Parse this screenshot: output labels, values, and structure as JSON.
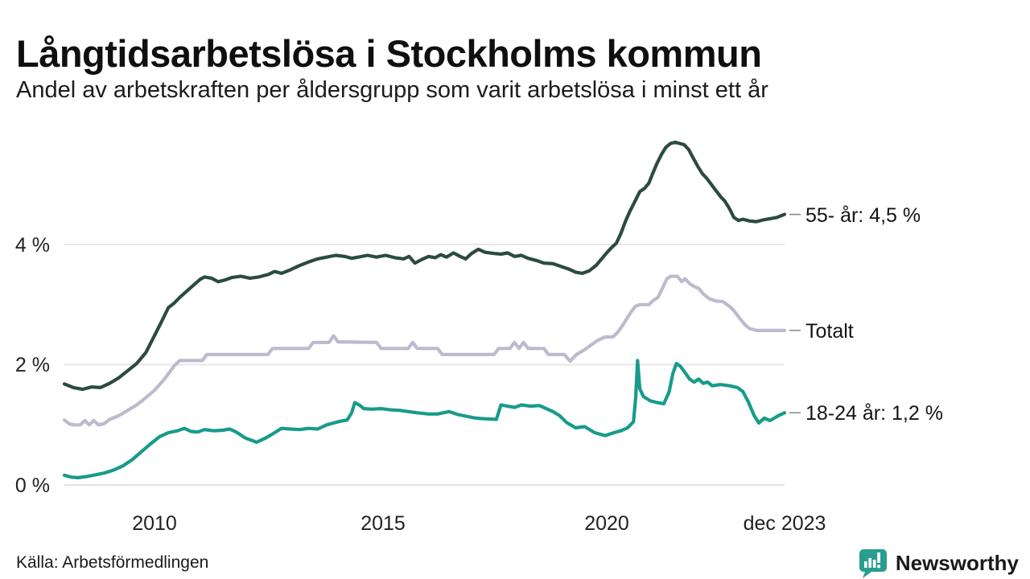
{
  "title": "Långtidsarbetslösa i Stockholms kommun",
  "subtitle": "Andel av arbetskraften per åldersgrupp som varit arbetslösa i minst ett år",
  "source": "Källa: Arbetsförmedlingen",
  "branding": {
    "name": "Newsworthy",
    "color": "#2a9d8f",
    "icon": "bar-chart-speech-bubble-icon"
  },
  "chart_data": {
    "type": "line",
    "title": "Långtidsarbetslösa i Stockholms kommun",
    "subtitle": "Andel av arbetskraften per åldersgrupp som varit arbetslösa i minst ett år",
    "unit": "% av arbetskraften",
    "grid": true,
    "legend_position": "right-edge-labels",
    "x_axis": {
      "range": [
        2008,
        2023.92
      ],
      "ticks": [
        {
          "label": "2010",
          "year": 2010
        },
        {
          "label": "2015",
          "year": 2015
        },
        {
          "label": "2020",
          "year": 2020
        },
        {
          "label": "dec 2023",
          "year": 2023.92
        }
      ]
    },
    "y_axis": {
      "range": [
        0,
        6.1
      ],
      "ticks": [
        {
          "label": "0 %",
          "value": 0
        },
        {
          "label": "2 %",
          "value": 2
        },
        {
          "label": "4 %",
          "value": 4
        }
      ]
    },
    "series": [
      {
        "name": "55- år",
        "end_label": "55- år: 4,5 %",
        "end_value": 4.5,
        "color": "#2b4b41",
        "points": [
          [
            2008,
            1.68
          ],
          [
            2008.2,
            1.62
          ],
          [
            2008.4,
            1.59
          ],
          [
            2008.6,
            1.63
          ],
          [
            2008.8,
            1.62
          ],
          [
            2009,
            1.69
          ],
          [
            2009.2,
            1.78
          ],
          [
            2009.4,
            1.9
          ],
          [
            2009.6,
            2.02
          ],
          [
            2009.8,
            2.2
          ],
          [
            2009.95,
            2.42
          ],
          [
            2010.15,
            2.72
          ],
          [
            2010.3,
            2.95
          ],
          [
            2010.42,
            3.02
          ],
          [
            2010.55,
            3.12
          ],
          [
            2010.7,
            3.22
          ],
          [
            2010.85,
            3.32
          ],
          [
            2011,
            3.42
          ],
          [
            2011.1,
            3.46
          ],
          [
            2011.25,
            3.44
          ],
          [
            2011.4,
            3.38
          ],
          [
            2011.55,
            3.41
          ],
          [
            2011.7,
            3.45
          ],
          [
            2011.9,
            3.47
          ],
          [
            2012.1,
            3.44
          ],
          [
            2012.3,
            3.46
          ],
          [
            2012.5,
            3.5
          ],
          [
            2012.65,
            3.55
          ],
          [
            2012.8,
            3.52
          ],
          [
            2013,
            3.58
          ],
          [
            2013.2,
            3.65
          ],
          [
            2013.4,
            3.71
          ],
          [
            2013.6,
            3.76
          ],
          [
            2013.8,
            3.79
          ],
          [
            2014,
            3.82
          ],
          [
            2014.2,
            3.8
          ],
          [
            2014.35,
            3.77
          ],
          [
            2014.5,
            3.79
          ],
          [
            2014.7,
            3.82
          ],
          [
            2014.9,
            3.79
          ],
          [
            2015.1,
            3.82
          ],
          [
            2015.3,
            3.78
          ],
          [
            2015.5,
            3.76
          ],
          [
            2015.62,
            3.8
          ],
          [
            2015.75,
            3.69
          ],
          [
            2015.9,
            3.75
          ],
          [
            2016.05,
            3.8
          ],
          [
            2016.2,
            3.78
          ],
          [
            2016.32,
            3.83
          ],
          [
            2016.45,
            3.79
          ],
          [
            2016.6,
            3.86
          ],
          [
            2016.75,
            3.8
          ],
          [
            2016.87,
            3.76
          ],
          [
            2017,
            3.85
          ],
          [
            2017.15,
            3.92
          ],
          [
            2017.3,
            3.87
          ],
          [
            2017.5,
            3.85
          ],
          [
            2017.65,
            3.84
          ],
          [
            2017.8,
            3.86
          ],
          [
            2017.95,
            3.8
          ],
          [
            2018.1,
            3.82
          ],
          [
            2018.25,
            3.77
          ],
          [
            2018.45,
            3.73
          ],
          [
            2018.6,
            3.69
          ],
          [
            2018.8,
            3.68
          ],
          [
            2019,
            3.63
          ],
          [
            2019.15,
            3.59
          ],
          [
            2019.3,
            3.54
          ],
          [
            2019.45,
            3.52
          ],
          [
            2019.6,
            3.56
          ],
          [
            2019.75,
            3.65
          ],
          [
            2019.9,
            3.78
          ],
          [
            2020,
            3.87
          ],
          [
            2020.1,
            3.95
          ],
          [
            2020.2,
            4.02
          ],
          [
            2020.3,
            4.18
          ],
          [
            2020.4,
            4.38
          ],
          [
            2020.5,
            4.55
          ],
          [
            2020.6,
            4.7
          ],
          [
            2020.72,
            4.88
          ],
          [
            2020.82,
            4.93
          ],
          [
            2020.92,
            5.02
          ],
          [
            2021,
            5.17
          ],
          [
            2021.1,
            5.35
          ],
          [
            2021.2,
            5.5
          ],
          [
            2021.3,
            5.62
          ],
          [
            2021.4,
            5.68
          ],
          [
            2021.5,
            5.7
          ],
          [
            2021.6,
            5.68
          ],
          [
            2021.7,
            5.66
          ],
          [
            2021.8,
            5.58
          ],
          [
            2021.9,
            5.44
          ],
          [
            2022,
            5.3
          ],
          [
            2022.1,
            5.18
          ],
          [
            2022.2,
            5.1
          ],
          [
            2022.3,
            5
          ],
          [
            2022.4,
            4.9
          ],
          [
            2022.5,
            4.8
          ],
          [
            2022.6,
            4.72
          ],
          [
            2022.7,
            4.6
          ],
          [
            2022.8,
            4.45
          ],
          [
            2022.9,
            4.4
          ],
          [
            2023,
            4.42
          ],
          [
            2023.15,
            4.39
          ],
          [
            2023.3,
            4.38
          ],
          [
            2023.45,
            4.41
          ],
          [
            2023.6,
            4.43
          ],
          [
            2023.75,
            4.45
          ],
          [
            2023.92,
            4.5
          ]
        ]
      },
      {
        "name": "Totalt",
        "end_label": "Totalt",
        "end_value": 2.57,
        "color": "#bebacd",
        "points": [
          [
            2008,
            1.08
          ],
          [
            2008.1,
            1.02
          ],
          [
            2008.2,
            1
          ],
          [
            2008.35,
            1
          ],
          [
            2008.45,
            1.07
          ],
          [
            2008.55,
            1
          ],
          [
            2008.65,
            1.07
          ],
          [
            2008.75,
            1
          ],
          [
            2008.88,
            1.02
          ],
          [
            2009,
            1.09
          ],
          [
            2009.2,
            1.15
          ],
          [
            2009.4,
            1.24
          ],
          [
            2009.6,
            1.33
          ],
          [
            2009.8,
            1.45
          ],
          [
            2010,
            1.58
          ],
          [
            2010.2,
            1.75
          ],
          [
            2010.35,
            1.9
          ],
          [
            2010.45,
            2
          ],
          [
            2010.55,
            2.07
          ],
          [
            2011.05,
            2.07
          ],
          [
            2011.15,
            2.17
          ],
          [
            2012.5,
            2.17
          ],
          [
            2012.6,
            2.27
          ],
          [
            2013.4,
            2.27
          ],
          [
            2013.5,
            2.37
          ],
          [
            2013.85,
            2.37
          ],
          [
            2013.95,
            2.48
          ],
          [
            2014.05,
            2.38
          ],
          [
            2014.9,
            2.37
          ],
          [
            2015,
            2.27
          ],
          [
            2015.6,
            2.27
          ],
          [
            2015.7,
            2.37
          ],
          [
            2015.8,
            2.27
          ],
          [
            2016.25,
            2.27
          ],
          [
            2016.35,
            2.17
          ],
          [
            2017.5,
            2.17
          ],
          [
            2017.6,
            2.27
          ],
          [
            2017.85,
            2.27
          ],
          [
            2017.95,
            2.37
          ],
          [
            2018.05,
            2.27
          ],
          [
            2018.15,
            2.37
          ],
          [
            2018.25,
            2.27
          ],
          [
            2018.6,
            2.27
          ],
          [
            2018.7,
            2.17
          ],
          [
            2019.05,
            2.17
          ],
          [
            2019.18,
            2.06
          ],
          [
            2019.32,
            2.17
          ],
          [
            2019.5,
            2.25
          ],
          [
            2019.65,
            2.33
          ],
          [
            2019.8,
            2.41
          ],
          [
            2019.95,
            2.46
          ],
          [
            2020.12,
            2.46
          ],
          [
            2020.22,
            2.53
          ],
          [
            2020.32,
            2.63
          ],
          [
            2020.42,
            2.75
          ],
          [
            2020.52,
            2.87
          ],
          [
            2020.62,
            2.97
          ],
          [
            2020.72,
            3
          ],
          [
            2020.92,
            3
          ],
          [
            2021.02,
            3.07
          ],
          [
            2021.12,
            3.12
          ],
          [
            2021.22,
            3.27
          ],
          [
            2021.32,
            3.43
          ],
          [
            2021.4,
            3.47
          ],
          [
            2021.55,
            3.47
          ],
          [
            2021.65,
            3.38
          ],
          [
            2021.72,
            3.43
          ],
          [
            2021.82,
            3.35
          ],
          [
            2021.92,
            3.3
          ],
          [
            2022.02,
            3.27
          ],
          [
            2022.12,
            3.18
          ],
          [
            2022.25,
            3.1
          ],
          [
            2022.4,
            3.06
          ],
          [
            2022.55,
            3.05
          ],
          [
            2022.65,
            3
          ],
          [
            2022.75,
            2.94
          ],
          [
            2022.85,
            2.85
          ],
          [
            2022.95,
            2.75
          ],
          [
            2023.05,
            2.66
          ],
          [
            2023.15,
            2.6
          ],
          [
            2023.3,
            2.57
          ],
          [
            2023.92,
            2.57
          ]
        ]
      },
      {
        "name": "18-24 år",
        "end_label": "18-24 år: 1,2 %",
        "end_value": 1.2,
        "color": "#189b8b",
        "points": [
          [
            2008,
            0.16
          ],
          [
            2008.15,
            0.13
          ],
          [
            2008.3,
            0.12
          ],
          [
            2008.5,
            0.14
          ],
          [
            2008.7,
            0.17
          ],
          [
            2008.9,
            0.2
          ],
          [
            2009.1,
            0.25
          ],
          [
            2009.3,
            0.32
          ],
          [
            2009.5,
            0.42
          ],
          [
            2009.7,
            0.55
          ],
          [
            2009.9,
            0.68
          ],
          [
            2010.1,
            0.8
          ],
          [
            2010.3,
            0.87
          ],
          [
            2010.5,
            0.9
          ],
          [
            2010.65,
            0.94
          ],
          [
            2010.8,
            0.89
          ],
          [
            2010.95,
            0.88
          ],
          [
            2011.1,
            0.92
          ],
          [
            2011.3,
            0.9
          ],
          [
            2011.5,
            0.91
          ],
          [
            2011.65,
            0.93
          ],
          [
            2011.8,
            0.88
          ],
          [
            2012,
            0.78
          ],
          [
            2012.25,
            0.71
          ],
          [
            2012.45,
            0.78
          ],
          [
            2012.65,
            0.87
          ],
          [
            2012.8,
            0.94
          ],
          [
            2013,
            0.93
          ],
          [
            2013.2,
            0.92
          ],
          [
            2013.4,
            0.94
          ],
          [
            2013.6,
            0.93
          ],
          [
            2013.8,
            1
          ],
          [
            2013.95,
            1.03
          ],
          [
            2014.1,
            1.06
          ],
          [
            2014.25,
            1.08
          ],
          [
            2014.35,
            1.2
          ],
          [
            2014.42,
            1.37
          ],
          [
            2014.52,
            1.33
          ],
          [
            2014.62,
            1.27
          ],
          [
            2014.8,
            1.26
          ],
          [
            2015,
            1.27
          ],
          [
            2015.2,
            1.25
          ],
          [
            2015.42,
            1.24
          ],
          [
            2015.6,
            1.22
          ],
          [
            2015.8,
            1.2
          ],
          [
            2016.05,
            1.18
          ],
          [
            2016.25,
            1.18
          ],
          [
            2016.5,
            1.22
          ],
          [
            2016.7,
            1.17
          ],
          [
            2016.9,
            1.14
          ],
          [
            2017.1,
            1.11
          ],
          [
            2017.3,
            1.1
          ],
          [
            2017.55,
            1.09
          ],
          [
            2017.65,
            1.33
          ],
          [
            2017.8,
            1.31
          ],
          [
            2017.95,
            1.29
          ],
          [
            2018.1,
            1.33
          ],
          [
            2018.3,
            1.31
          ],
          [
            2018.5,
            1.32
          ],
          [
            2018.65,
            1.27
          ],
          [
            2018.8,
            1.22
          ],
          [
            2018.95,
            1.15
          ],
          [
            2019.1,
            1.04
          ],
          [
            2019.3,
            0.95
          ],
          [
            2019.5,
            0.97
          ],
          [
            2019.72,
            0.87
          ],
          [
            2019.95,
            0.82
          ],
          [
            2020.15,
            0.87
          ],
          [
            2020.3,
            0.9
          ],
          [
            2020.45,
            0.95
          ],
          [
            2020.58,
            1.05
          ],
          [
            2020.63,
            1.45
          ],
          [
            2020.67,
            2.07
          ],
          [
            2020.72,
            1.6
          ],
          [
            2020.8,
            1.47
          ],
          [
            2020.95,
            1.4
          ],
          [
            2021.1,
            1.37
          ],
          [
            2021.25,
            1.35
          ],
          [
            2021.37,
            1.55
          ],
          [
            2021.45,
            1.85
          ],
          [
            2021.53,
            2.02
          ],
          [
            2021.62,
            1.97
          ],
          [
            2021.72,
            1.87
          ],
          [
            2021.82,
            1.76
          ],
          [
            2021.92,
            1.71
          ],
          [
            2022.02,
            1.76
          ],
          [
            2022.12,
            1.69
          ],
          [
            2022.22,
            1.71
          ],
          [
            2022.32,
            1.65
          ],
          [
            2022.5,
            1.67
          ],
          [
            2022.7,
            1.65
          ],
          [
            2022.88,
            1.62
          ],
          [
            2023,
            1.55
          ],
          [
            2023.12,
            1.38
          ],
          [
            2023.25,
            1.15
          ],
          [
            2023.35,
            1.03
          ],
          [
            2023.47,
            1.11
          ],
          [
            2023.6,
            1.07
          ],
          [
            2023.78,
            1.15
          ],
          [
            2023.92,
            1.2
          ]
        ]
      }
    ]
  }
}
